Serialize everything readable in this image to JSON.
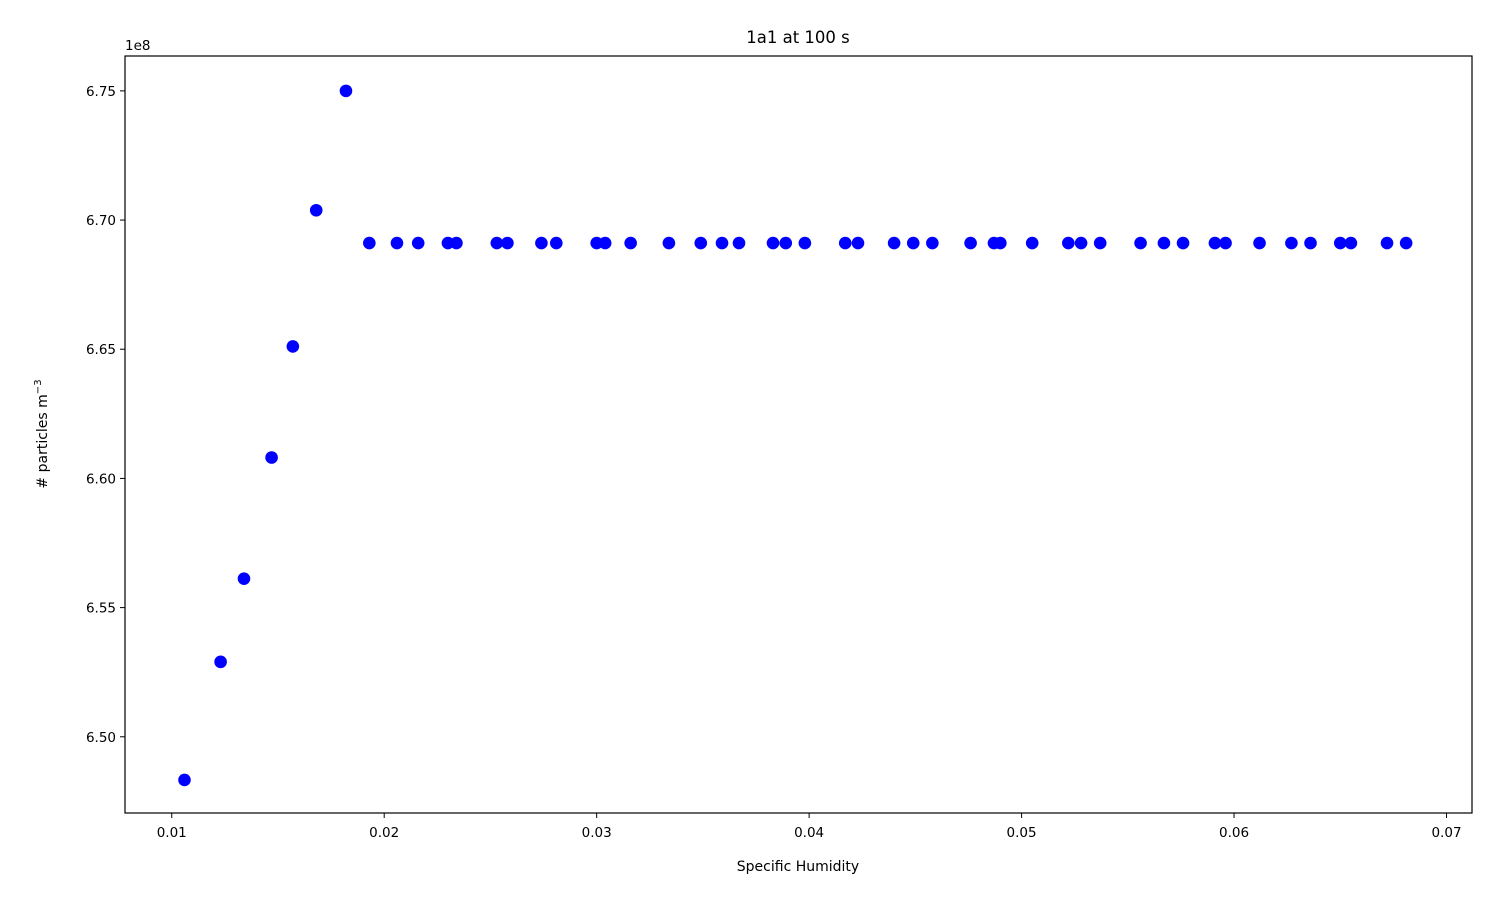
{
  "chart_data": {
    "type": "scatter",
    "title": "1a1 at 100 s",
    "xlabel": "Specific Humidity",
    "ylabel_prefix": "# particles m",
    "ylabel_superscript": "−3",
    "y_offset_label": "1e8",
    "xlim": [
      0.0078,
      0.0712
    ],
    "ylim": [
      6.4705,
      6.7635
    ],
    "x_ticks": [
      0.01,
      0.02,
      0.03,
      0.04,
      0.05,
      0.06,
      0.07
    ],
    "x_tick_labels": [
      "0.01",
      "0.02",
      "0.03",
      "0.04",
      "0.05",
      "0.06",
      "0.07"
    ],
    "y_ticks": [
      6.5,
      6.55,
      6.6,
      6.65,
      6.7,
      6.75
    ],
    "y_tick_labels": [
      "6.50",
      "6.55",
      "6.60",
      "6.65",
      "6.70",
      "6.75"
    ],
    "grid": false,
    "marker_color": "#0000ff",
    "series": [
      {
        "points": [
          [
            0.0106,
            6.4833
          ],
          [
            0.0123,
            6.529
          ],
          [
            0.0134,
            6.5612
          ],
          [
            0.0147,
            6.6081
          ],
          [
            0.0157,
            6.6511
          ],
          [
            0.0168,
            6.7038
          ],
          [
            0.0182,
            6.75
          ],
          [
            0.0193,
            6.6911
          ],
          [
            0.0206,
            6.6911
          ],
          [
            0.0216,
            6.6911
          ],
          [
            0.023,
            6.6911
          ],
          [
            0.0234,
            6.6911
          ],
          [
            0.0253,
            6.6911
          ],
          [
            0.0258,
            6.6911
          ],
          [
            0.0274,
            6.6911
          ],
          [
            0.0281,
            6.6911
          ],
          [
            0.03,
            6.6911
          ],
          [
            0.0304,
            6.6911
          ],
          [
            0.0316,
            6.6911
          ],
          [
            0.0334,
            6.6911
          ],
          [
            0.0349,
            6.6911
          ],
          [
            0.0359,
            6.6911
          ],
          [
            0.0367,
            6.6911
          ],
          [
            0.0383,
            6.6911
          ],
          [
            0.0389,
            6.6911
          ],
          [
            0.0398,
            6.6911
          ],
          [
            0.0417,
            6.6911
          ],
          [
            0.0423,
            6.6911
          ],
          [
            0.044,
            6.6911
          ],
          [
            0.0449,
            6.6911
          ],
          [
            0.0458,
            6.6911
          ],
          [
            0.0476,
            6.6911
          ],
          [
            0.0487,
            6.6911
          ],
          [
            0.049,
            6.6911
          ],
          [
            0.0505,
            6.6911
          ],
          [
            0.0522,
            6.6911
          ],
          [
            0.0528,
            6.6911
          ],
          [
            0.0537,
            6.6911
          ],
          [
            0.0556,
            6.6911
          ],
          [
            0.0567,
            6.6911
          ],
          [
            0.0576,
            6.6911
          ],
          [
            0.0591,
            6.6911
          ],
          [
            0.0596,
            6.6911
          ],
          [
            0.0612,
            6.6911
          ],
          [
            0.0627,
            6.6911
          ],
          [
            0.0636,
            6.6911
          ],
          [
            0.065,
            6.6911
          ],
          [
            0.0655,
            6.6911
          ],
          [
            0.0672,
            6.6911
          ],
          [
            0.0681,
            6.6911
          ]
        ]
      }
    ]
  }
}
